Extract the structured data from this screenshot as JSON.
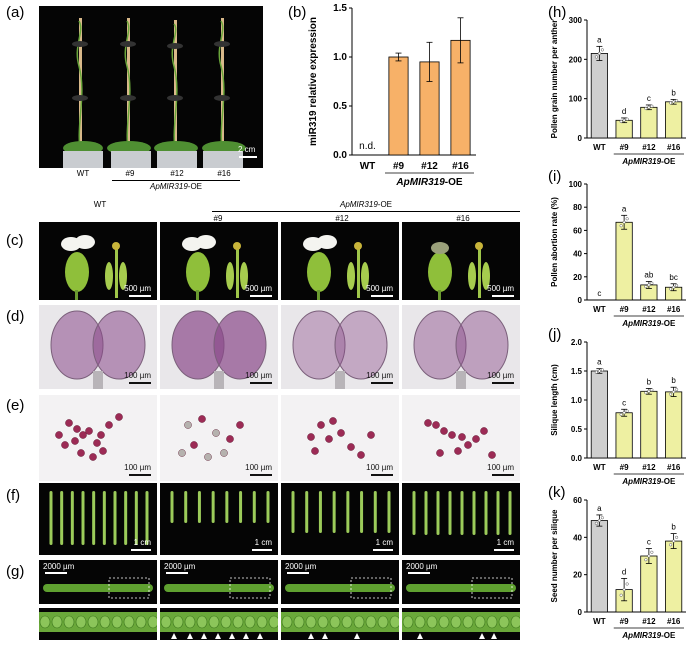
{
  "panels": {
    "a": "(a)",
    "b": "(b)",
    "c": "(c)",
    "d": "(d)",
    "e": "(e)",
    "f": "(f)",
    "g": "(g)",
    "h": "(h)",
    "i": "(i)",
    "j": "(j)",
    "k": "(k)"
  },
  "panel_a": {
    "scale": "2 cm",
    "labels": [
      "WT",
      "#9",
      "#12",
      "#16"
    ],
    "group_italic": "ApMIR319",
    "group_suffix": "-OE"
  },
  "row_header": {
    "wt": "WT",
    "group_italic": "ApMIR319",
    "group_suffix": "-OE",
    "lines": [
      "#9",
      "#12",
      "#16"
    ]
  },
  "scales": {
    "c": "500 µm",
    "d": "100 µm",
    "e": "100 µm",
    "f": "1 cm",
    "g": "2000 µm"
  },
  "colors": {
    "wt_bar": "#cfcfcf",
    "orange_bar": "#f7b168",
    "yellow_bar": "#eef0a2",
    "stain_purple": "#8a4a8a",
    "pollen_red": "#9c2b55",
    "silique_green": "#9ccb5a",
    "triangle": "#ffffff"
  },
  "chart_data": [
    {
      "id": "b",
      "type": "bar",
      "categories": [
        "WT",
        "#9",
        "#12",
        "#16"
      ],
      "values": [
        0,
        1.0,
        0.95,
        1.17
      ],
      "errors": [
        0,
        0.04,
        0.2,
        0.23
      ],
      "value_labels": [
        "n.d.",
        "",
        "",
        ""
      ],
      "ylabel": "miR319 relative expression",
      "ylim": [
        0,
        1.5
      ],
      "yticks": [
        0.0,
        0.5,
        1.0,
        1.5
      ],
      "group_label": "ApMIR319-OE",
      "bar_color": "#f7b168"
    },
    {
      "id": "h",
      "type": "bar",
      "categories": [
        "WT",
        "#9",
        "#12",
        "#16"
      ],
      "values": [
        215,
        45,
        78,
        92
      ],
      "errors": [
        18,
        6,
        6,
        6
      ],
      "letters": [
        "a",
        "d",
        "c",
        "b"
      ],
      "ylabel": "Pollen grain number per anther",
      "ylim": [
        0,
        300
      ],
      "yticks": [
        0,
        100,
        200,
        300
      ],
      "group_label": "ApMIR319-OE"
    },
    {
      "id": "i",
      "type": "bar",
      "categories": [
        "WT",
        "#9",
        "#12",
        "#16"
      ],
      "values": [
        0,
        67,
        13,
        11
      ],
      "errors": [
        0,
        6,
        3,
        3
      ],
      "letters": [
        "c",
        "a",
        "ab",
        "bc"
      ],
      "ylabel": "Pollen abortion rate (%)",
      "ylim": [
        0,
        100
      ],
      "yticks": [
        0,
        20,
        40,
        60,
        80,
        100
      ],
      "group_label": "ApMIR319-OE"
    },
    {
      "id": "j",
      "type": "bar",
      "categories": [
        "WT",
        "#9",
        "#12",
        "#16"
      ],
      "values": [
        1.5,
        0.78,
        1.15,
        1.14
      ],
      "errors": [
        0.04,
        0.06,
        0.05,
        0.08
      ],
      "letters": [
        "a",
        "c",
        "b",
        "b"
      ],
      "ylabel": "Silique length (cm)",
      "ylim": [
        0,
        2.0
      ],
      "yticks": [
        0.0,
        0.5,
        1.0,
        1.5,
        2.0
      ],
      "group_label": "ApMIR319-OE"
    },
    {
      "id": "k",
      "type": "bar",
      "categories": [
        "WT",
        "#9",
        "#12",
        "#16"
      ],
      "values": [
        49,
        12,
        30,
        38
      ],
      "errors": [
        3,
        6,
        4,
        4
      ],
      "letters": [
        "a",
        "d",
        "c",
        "b"
      ],
      "ylabel": "Seed number per silique",
      "ylim": [
        0,
        60
      ],
      "yticks": [
        0,
        20,
        40,
        60
      ],
      "group_label": "ApMIR319-OE"
    }
  ]
}
